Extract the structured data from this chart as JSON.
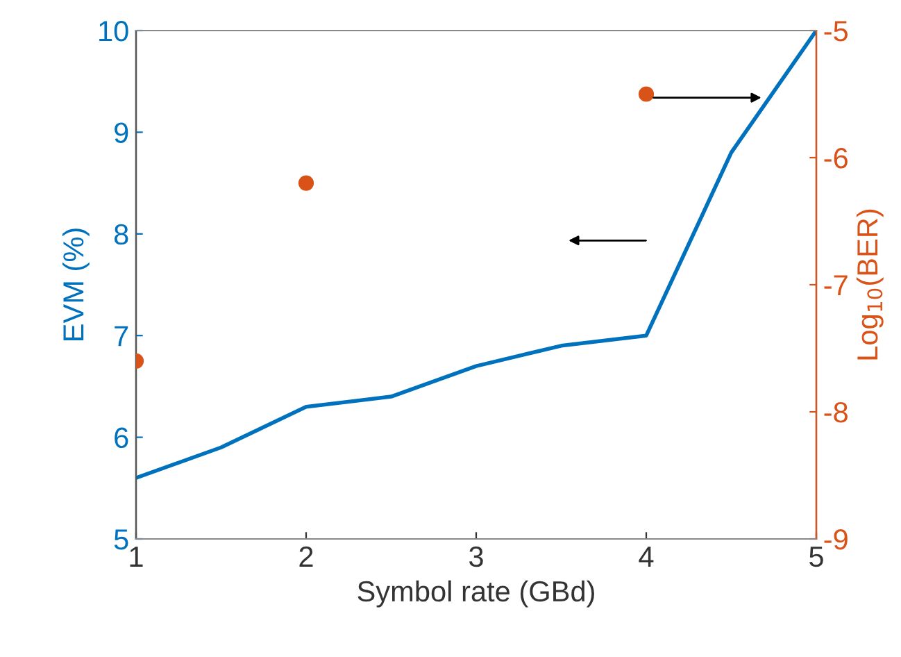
{
  "chart_data": {
    "type": "line",
    "xlabel": "Symbol rate (GBd)",
    "ylabel": "EVM (%)",
    "y2label": "Log$_{10}$(BER)",
    "series": [
      {
        "color": "#0072bd",
        "x": [
          1,
          1.5,
          2,
          2.5,
          3,
          3.5,
          4,
          4.5,
          5
        ],
        "values": [
          5.6,
          5.9,
          6.3,
          6.4,
          6.7,
          6.9,
          7.0,
          8.8,
          10
        ]
      },
      {
        "type": "scatter",
        "axis": "y2",
        "color": "#d95319",
        "marker": "circle",
        "x": [
          1,
          2,
          4
        ],
        "values": [
          -7.6,
          -6.2,
          -5.5
        ]
      }
    ],
    "xlim": [
      1,
      5
    ],
    "xticks": [
      1,
      2,
      3,
      4,
      5
    ],
    "ylim": [
      5,
      10
    ],
    "yticks": [
      5,
      6,
      7,
      8,
      9,
      10
    ],
    "y2lim": [
      -9,
      -5
    ],
    "y2ticks": [
      -9,
      -8,
      -7,
      -6,
      -5
    ],
    "grid": false,
    "legend": false
  }
}
